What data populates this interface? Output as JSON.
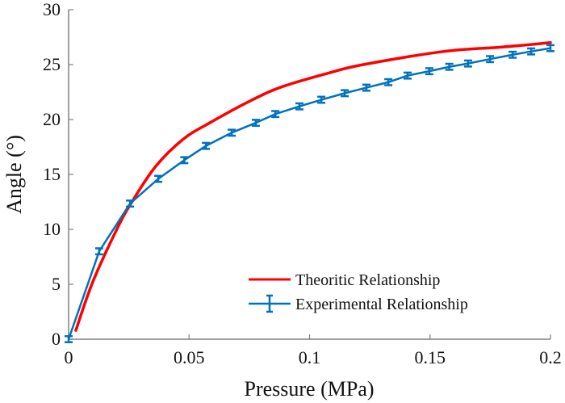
{
  "chart_data": {
    "type": "line",
    "title": "",
    "xlabel": "Pressure (MPa)",
    "ylabel": "Angle (°)",
    "xlim": [
      0,
      0.2
    ],
    "ylim": [
      0,
      30
    ],
    "xticks": [
      0,
      0.05,
      0.1,
      0.15,
      0.2
    ],
    "xtick_labels": [
      "0",
      "0.05",
      "0.1",
      "0.15",
      "0.2"
    ],
    "yticks": [
      0,
      5,
      10,
      15,
      20,
      25,
      30
    ],
    "ytick_labels": [
      "0",
      "5",
      "10",
      "15",
      "20",
      "25",
      "30"
    ],
    "grid": false,
    "legend_position": "bottom-right",
    "series": [
      {
        "name": "Theoritic Relationship",
        "color": "#ff0000",
        "style": "line",
        "x": [
          0.003,
          0.01,
          0.02,
          0.026,
          0.036,
          0.0475,
          0.0586,
          0.0754,
          0.0888,
          0.109,
          0.1223,
          0.1558,
          0.18,
          0.2
        ],
        "y": [
          0.8,
          5.2,
          10.0,
          12.4,
          15.7,
          18.2,
          19.7,
          21.7,
          23.0,
          24.3,
          25.0,
          26.2,
          26.6,
          27.0
        ]
      },
      {
        "name": "Experimental Relationship",
        "color": "#0072bd",
        "style": "errorbar",
        "x": [
          0,
          0.0127,
          0.0255,
          0.0372,
          0.048,
          0.057,
          0.0677,
          0.0777,
          0.0858,
          0.0958,
          0.1049,
          0.1146,
          0.1236,
          0.1327,
          0.1407,
          0.1497,
          0.158,
          0.1658,
          0.1749,
          0.1843,
          0.192,
          0.2
        ],
        "y": [
          0,
          8.0,
          12.35,
          14.6,
          16.3,
          17.6,
          18.8,
          19.7,
          20.5,
          21.2,
          21.8,
          22.4,
          22.9,
          23.4,
          24.0,
          24.4,
          24.8,
          25.1,
          25.5,
          25.9,
          26.2,
          26.5
        ],
        "error": [
          0.2,
          0.2,
          0.2,
          0.2,
          0.2,
          0.2,
          0.2,
          0.2,
          0.2,
          0.2,
          0.2,
          0.2,
          0.2,
          0.2,
          0.2,
          0.2,
          0.2,
          0.2,
          0.2,
          0.2,
          0.2,
          0.2
        ]
      }
    ]
  }
}
